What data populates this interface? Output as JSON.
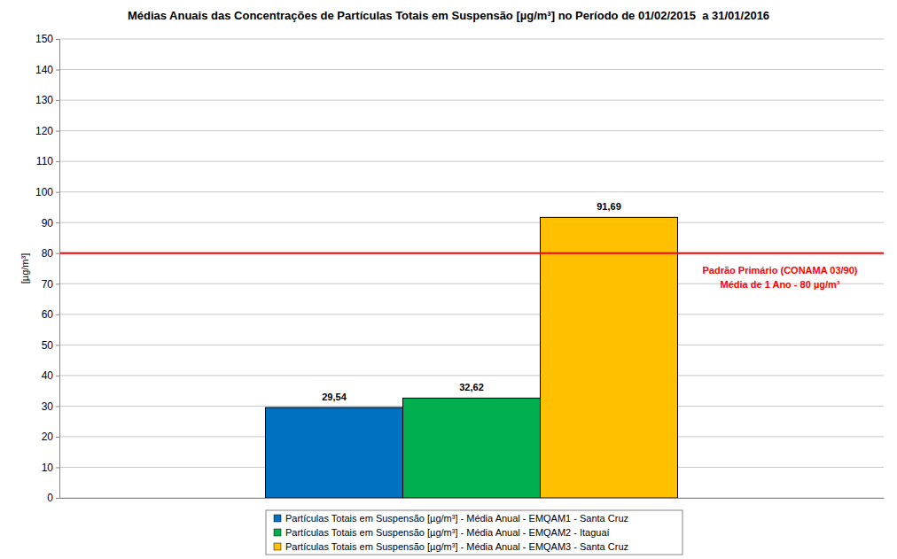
{
  "chart_data": {
    "type": "bar",
    "title": "Médias Anuais das Concentrações de Partículas Totais em Suspensão [µg/m³] no Período de 01/02/2015  a 31/01/2016",
    "y_label": "[µg/m³]",
    "categories": [
      null
    ],
    "series": [
      {
        "name": "Partículas Totais em Suspensão [µg/m³] - Média Anual - EMQAM1 - Santa Cruz",
        "color": "#0070c0",
        "values": [
          29.54
        ],
        "value_labels": [
          "29,54"
        ]
      },
      {
        "name": "Partículas Totais em Suspensão [µg/m³] - Média Anual - EMQAM2 - Itaguaí",
        "color": "#00b050",
        "values": [
          32.62
        ],
        "value_labels": [
          "32,62"
        ]
      },
      {
        "name": "Partículas Totais em Suspensão [µg/m³] - Média Anual - EMQAM3 - Santa Cruz",
        "color": "#ffc000",
        "values": [
          91.69
        ],
        "value_labels": [
          "91,69"
        ]
      }
    ],
    "ylim": [
      0,
      150
    ],
    "yticks": [
      0,
      10,
      20,
      30,
      40,
      50,
      60,
      70,
      80,
      90,
      100,
      110,
      120,
      130,
      140,
      150
    ],
    "grid": true,
    "data_labels": true,
    "legend": "bottom",
    "annotations": [
      {
        "y": 80,
        "color": "#ff0000",
        "text": [
          "Padrão Primário (CONAMA 03/90)",
          "Média de 1 Ano - 80 µg/m³"
        ]
      }
    ]
  }
}
